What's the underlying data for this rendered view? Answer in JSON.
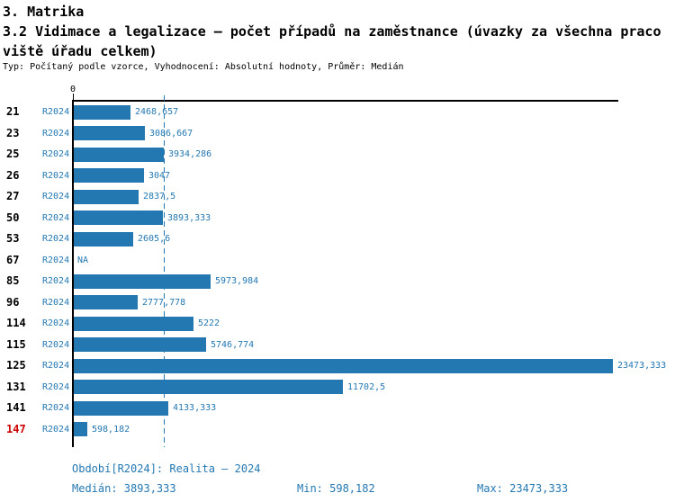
{
  "header": {
    "section_title": "3. Matrika",
    "chart_title_line1": "3.2 Vidimace a legalizace – počet případů na zaměstnance (úvazky za všechna praco",
    "chart_title_line2": "viště úřadu celkem)",
    "meta": "Typ: Počítaný podle vzorce, Vyhodnocení: Absolutní hodnoty, Průměr: Medián"
  },
  "chart_data": {
    "type": "bar",
    "orientation": "horizontal",
    "title": "3.2 Vidimace a legalizace – počet případů na zaměstnance (úvazky za všechna pracoviště úřadu celkem)",
    "categories": [
      "21",
      "23",
      "25",
      "26",
      "27",
      "50",
      "53",
      "67",
      "85",
      "96",
      "114",
      "115",
      "125",
      "131",
      "141",
      "147"
    ],
    "series_label": "R2024",
    "values": [
      2468.657,
      3086.667,
      3934.286,
      3047,
      2837.5,
      3893.333,
      2605.6,
      null,
      5973.984,
      2777.778,
      5222,
      5746.774,
      23473.333,
      11702.5,
      4133.333,
      598.182
    ],
    "value_labels": [
      "2468,657",
      "3086,667",
      "3934,286",
      "3047",
      "2837,5",
      "3893,333",
      "2605,6",
      "NA",
      "5973,984",
      "2777,778",
      "5222",
      "5746,774",
      "23473,333",
      "11702,5",
      "4133,333",
      "598,182"
    ],
    "highlighted_category": "147",
    "axis_origin_label": "0",
    "xlim": [
      0,
      23473.333
    ],
    "median_value": 3893.333,
    "grid": false,
    "legend": "none",
    "bar_color": "#2478b2",
    "text_color": "#2478b2",
    "highlight_color": "#cc0000"
  },
  "footer": {
    "period": "Období[R2024]: Realita – 2024",
    "median": "Medián: 3893,333",
    "min": "Min: 598,182",
    "max": "Max: 23473,333"
  }
}
